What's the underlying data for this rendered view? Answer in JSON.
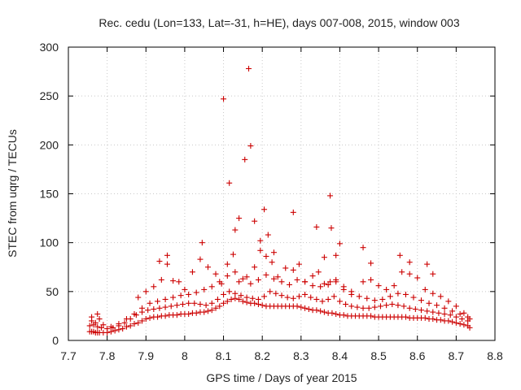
{
  "chart_data": {
    "type": "scatter",
    "title": "Rec. cedu (Lon=133, Lat=-31, h=HE), days 007-008, 2015, window 003",
    "xlabel": "GPS time / Days of year 2015",
    "ylabel": "STEC from uqrg / TECUs",
    "xlim": [
      7.7,
      8.8
    ],
    "ylim": [
      0,
      300
    ],
    "x_ticks": [
      "7.7",
      "7.8",
      "7.9",
      "8",
      "8.1",
      "8.2",
      "8.3",
      "8.4",
      "8.5",
      "8.6",
      "8.7",
      "8.8"
    ],
    "y_ticks": [
      "0",
      "50",
      "100",
      "150",
      "200",
      "250",
      "300"
    ],
    "grid": true,
    "marker": "plus",
    "color": "#cc0000",
    "series": [
      {
        "x": [
          7.755,
          7.76,
          7.765,
          7.77,
          7.775,
          7.78,
          7.79,
          7.8,
          7.81,
          7.82,
          7.83,
          7.84,
          7.85,
          7.86,
          7.87,
          7.88,
          7.89,
          7.9,
          7.91,
          7.92,
          7.93,
          7.94,
          7.95,
          7.96,
          7.97,
          7.98,
          7.99,
          8.0,
          8.01,
          8.02,
          8.03,
          8.04,
          8.05,
          8.06,
          8.07,
          8.08,
          8.09,
          8.1,
          8.11,
          8.12,
          8.13,
          8.14,
          8.15,
          8.16,
          8.17,
          8.18,
          8.19,
          8.2,
          8.21,
          8.22,
          8.23,
          8.24,
          8.25,
          8.26,
          8.27,
          8.28,
          8.29,
          8.3,
          8.31,
          8.32,
          8.33,
          8.34,
          8.35,
          8.36,
          8.37,
          8.38,
          8.39,
          8.4,
          8.41,
          8.42,
          8.43,
          8.44,
          8.45,
          8.46,
          8.47,
          8.48,
          8.49,
          8.5,
          8.51,
          8.52,
          8.53,
          8.54,
          8.55,
          8.56,
          8.57,
          8.58,
          8.59,
          8.6,
          8.61,
          8.62,
          8.63,
          8.64,
          8.65,
          8.66,
          8.67,
          8.68,
          8.69,
          8.7,
          8.71,
          8.72,
          8.73,
          8.735
        ],
        "y": [
          9,
          9,
          9,
          8,
          8,
          8,
          8,
          8,
          9,
          10,
          11,
          12,
          14,
          15,
          17,
          18,
          20,
          22,
          23,
          24,
          24,
          25,
          25,
          26,
          26,
          26,
          27,
          27,
          27,
          28,
          28,
          29,
          29,
          30,
          31,
          33,
          35,
          38,
          40,
          42,
          43,
          42,
          40,
          39,
          38,
          38,
          37,
          36,
          35,
          35,
          35,
          35,
          35,
          35,
          35,
          35,
          35,
          34,
          33,
          32,
          31,
          31,
          30,
          29,
          28,
          28,
          27,
          26,
          26,
          25,
          25,
          25,
          25,
          25,
          25,
          25,
          24,
          24,
          24,
          24,
          24,
          24,
          24,
          24,
          24,
          23,
          23,
          23,
          23,
          23,
          22,
          22,
          21,
          21,
          20,
          20,
          19,
          18,
          17,
          16,
          15,
          13
        ]
      },
      {
        "x": [
          7.755,
          7.765,
          7.775,
          7.785,
          7.8,
          7.815,
          7.83,
          7.845,
          7.86,
          7.875,
          7.89,
          7.905,
          7.92,
          7.935,
          7.95,
          7.965,
          7.98,
          7.995,
          8.01,
          8.025,
          8.04,
          8.055,
          8.07,
          8.085,
          8.1,
          8.115,
          8.13,
          8.145,
          8.16,
          8.175,
          8.19,
          8.205,
          8.22,
          8.235,
          8.25,
          8.265,
          8.28,
          8.295,
          8.31,
          8.325,
          8.34,
          8.355,
          8.37,
          8.385,
          8.4,
          8.415,
          8.43,
          8.445,
          8.46,
          8.475,
          8.49,
          8.505,
          8.52,
          8.535,
          8.55,
          8.565,
          8.58,
          8.595,
          8.61,
          8.625,
          8.64,
          8.655,
          8.67,
          8.685,
          8.7,
          8.715,
          8.73
        ],
        "y": [
          15,
          16,
          14,
          13,
          12,
          13,
          15,
          18,
          22,
          26,
          29,
          31,
          32,
          33,
          34,
          35,
          36,
          37,
          38,
          38,
          37,
          36,
          38,
          42,
          47,
          50,
          48,
          46,
          44,
          43,
          42,
          45,
          50,
          48,
          46,
          44,
          43,
          45,
          47,
          44,
          42,
          40,
          42,
          45,
          40,
          37,
          35,
          34,
          33,
          33,
          34,
          35,
          36,
          37,
          36,
          35,
          33,
          32,
          31,
          30,
          29,
          28,
          27,
          26,
          24,
          22,
          20
        ]
      },
      {
        "x": [
          7.76,
          7.77,
          7.78,
          7.79,
          7.81,
          7.83,
          7.85,
          7.87,
          7.89,
          7.91,
          7.93,
          7.95,
          7.97,
          7.99,
          8.01,
          8.03,
          8.05,
          8.07,
          8.09,
          8.11,
          8.13,
          8.15,
          8.17,
          8.19,
          8.21,
          8.23,
          8.25,
          8.27,
          8.29,
          8.31,
          8.33,
          8.35,
          8.37,
          8.39,
          8.41,
          8.43,
          8.45,
          8.47,
          8.49,
          8.51,
          8.53,
          8.55,
          8.57,
          8.59,
          8.61,
          8.63,
          8.65,
          8.67,
          8.69,
          8.71,
          8.73
        ],
        "y": [
          20,
          18,
          22,
          16,
          14,
          17,
          22,
          27,
          33,
          38,
          40,
          42,
          44,
          46,
          47,
          49,
          52,
          55,
          60,
          66,
          70,
          63,
          58,
          62,
          67,
          63,
          60,
          57,
          62,
          60,
          56,
          55,
          57,
          60,
          52,
          47,
          45,
          43,
          41,
          42,
          45,
          48,
          47,
          44,
          41,
          38,
          36,
          33,
          30,
          27,
          24
        ]
      },
      {
        "x": [
          7.76,
          7.775,
          7.88,
          7.9,
          7.92,
          7.94,
          7.955,
          7.97,
          7.985,
          8.0,
          8.02,
          8.04,
          8.06,
          8.08,
          8.095,
          8.11,
          8.125,
          8.14,
          8.16,
          8.18,
          8.195,
          8.21,
          8.225,
          8.24,
          8.26,
          8.28,
          8.295,
          8.31,
          8.33,
          8.345,
          8.36,
          8.375,
          8.39,
          8.41,
          8.43,
          8.46,
          8.48,
          8.5,
          8.52,
          8.54,
          8.56,
          8.58,
          8.6,
          8.62,
          8.64,
          8.66,
          8.68,
          8.7,
          8.72,
          8.735
        ],
        "y": [
          24,
          27,
          44,
          50,
          55,
          62,
          78,
          61,
          60,
          52,
          70,
          83,
          75,
          68,
          58,
          78,
          88,
          60,
          65,
          75,
          92,
          86,
          80,
          65,
          74,
          72,
          78,
          60,
          66,
          70,
          58,
          60,
          62,
          55,
          50,
          60,
          62,
          56,
          52,
          56,
          70,
          68,
          64,
          52,
          48,
          45,
          40,
          35,
          28,
          22
        ]
      },
      {
        "x": [
          7.935,
          7.955,
          8.045,
          8.1,
          8.115,
          8.13,
          8.14,
          8.155,
          8.165,
          8.17,
          8.18,
          8.195,
          8.205,
          8.215,
          8.23,
          8.28,
          8.34,
          8.36,
          8.375,
          8.378,
          8.39,
          8.4,
          8.46,
          8.48,
          8.555,
          8.58,
          8.625,
          8.64
        ],
        "y": [
          81,
          87,
          100,
          247,
          161,
          113,
          125,
          185,
          278,
          199,
          122,
          102,
          134,
          108,
          90,
          131,
          116,
          85,
          148,
          115,
          87,
          99,
          95,
          79,
          87,
          80,
          78,
          68
        ]
      }
    ]
  }
}
